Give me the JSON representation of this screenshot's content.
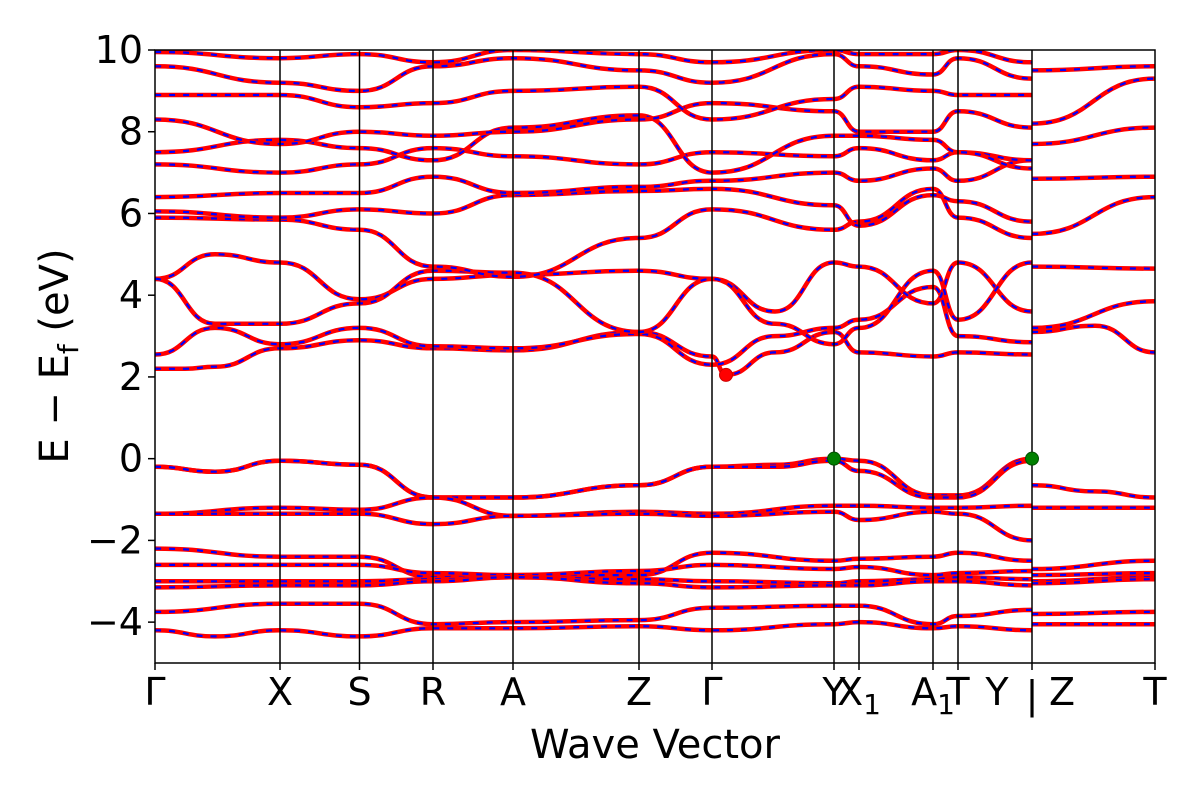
{
  "chart_data": {
    "type": "line",
    "xlabel": "Wave Vector",
    "ylabel": "E − E",
    "ylabel_subscript": "f",
    "ylabel_unit": " (eV)",
    "ylim": [
      -5,
      10
    ],
    "yticks": [
      -4,
      -2,
      0,
      2,
      4,
      6,
      8,
      10
    ],
    "ytick_labels": [
      "−4",
      "−2",
      "0",
      "2",
      "4",
      "6",
      "8",
      "10"
    ],
    "xlim": [
      0,
      1
    ],
    "kpath_labels": [
      {
        "label": "Γ",
        "x": 0.0
      },
      {
        "label": "X",
        "x": 0.125
      },
      {
        "label": "S",
        "x": 0.2045
      },
      {
        "label": "R",
        "x": 0.278
      },
      {
        "label": "A",
        "x": 0.358
      },
      {
        "label": "Z",
        "x": 0.484
      },
      {
        "label": "Γ",
        "x": 0.557
      },
      {
        "label": "Y",
        "x": 0.679
      },
      {
        "label": "X",
        "sub": "1",
        "x": 0.704
      },
      {
        "label": "A",
        "sub": "1",
        "x": 0.778
      },
      {
        "label": "T",
        "x": 0.803
      },
      {
        "label": "Y",
        "x": 0.877,
        "display_offset": -0.035
      },
      {
        "label": "|",
        "x": 0.877
      },
      {
        "label": "Z",
        "x": 0.877,
        "display_offset": 0.03
      },
      {
        "label": "T",
        "x": 1.0
      }
    ],
    "separators": [
      0.125,
      0.2045,
      0.278,
      0.358,
      0.484,
      0.557,
      0.679,
      0.704,
      0.778,
      0.803,
      0.877
    ],
    "series_colors": {
      "band": "#ff0000",
      "overlay": "#0000ff"
    },
    "markers": [
      {
        "x": 0.571,
        "y": 2.05,
        "color": "#ff0000",
        "edge": "#cc0000"
      },
      {
        "x": 0.679,
        "y": 0.0,
        "color": "#008000",
        "edge": "#005000"
      },
      {
        "x": 0.877,
        "y": 0.0,
        "color": "#008000",
        "edge": "#005000"
      }
    ],
    "series": [
      {
        "x": [
          0,
          0.06,
          0.125,
          0.2045,
          0.278,
          0.358,
          0.484,
          0.557,
          0.62,
          0.679,
          0.704,
          0.778,
          0.803,
          0.877,
          0.877,
          0.94,
          1.0
        ],
        "y": [
          -0.2,
          -0.32,
          -0.05,
          -0.15,
          -0.95,
          -0.95,
          -0.65,
          -0.2,
          -0.15,
          0.0,
          -0.05,
          -0.9,
          -0.9,
          0.0,
          -0.65,
          -0.8,
          -0.95
        ]
      },
      {
        "x": [
          0,
          0.06,
          0.125,
          0.2045,
          0.278,
          0.358,
          0.484,
          0.557,
          0.62,
          0.679,
          0.704,
          0.778,
          0.803,
          0.877
        ],
        "y": [
          -0.2,
          -0.32,
          -0.05,
          -0.15,
          -0.95,
          -0.95,
          -0.65,
          -0.2,
          -0.2,
          -0.05,
          -0.3,
          -0.95,
          -0.95,
          -0.05
        ]
      },
      {
        "x": [
          0,
          0.125,
          0.2045,
          0.278,
          0.358,
          0.484,
          0.557,
          0.679,
          0.704,
          0.778,
          0.803,
          0.877,
          0.877,
          1.0
        ],
        "y": [
          -1.35,
          -1.2,
          -1.25,
          -0.95,
          -1.4,
          -1.3,
          -1.35,
          -1.15,
          -1.15,
          -1.2,
          -1.2,
          -1.15,
          -1.2,
          -1.2
        ]
      },
      {
        "x": [
          0,
          0.125,
          0.2045,
          0.278,
          0.358,
          0.484,
          0.557,
          0.679,
          0.704,
          0.778,
          0.803,
          0.877
        ],
        "y": [
          -1.35,
          -1.35,
          -1.35,
          -1.6,
          -1.4,
          -1.35,
          -1.4,
          -1.3,
          -1.5,
          -1.3,
          -1.35,
          -2.0
        ]
      },
      {
        "x": [
          0,
          0.125,
          0.2045,
          0.278,
          0.358,
          0.484,
          0.557,
          0.679,
          0.704,
          0.778,
          0.803,
          0.877,
          0.877,
          1.0
        ],
        "y": [
          -2.2,
          -2.4,
          -2.4,
          -2.9,
          -2.85,
          -2.85,
          -2.3,
          -2.5,
          -2.45,
          -2.4,
          -2.3,
          -2.5,
          -2.7,
          -2.5
        ]
      },
      {
        "x": [
          0,
          0.125,
          0.2045,
          0.278,
          0.358,
          0.484,
          0.557,
          0.679,
          0.704,
          0.778,
          0.803,
          0.877,
          0.877,
          1.0
        ],
        "y": [
          -2.6,
          -2.6,
          -2.6,
          -2.8,
          -2.85,
          -2.75,
          -2.6,
          -2.7,
          -2.65,
          -2.85,
          -2.8,
          -2.75,
          -2.85,
          -2.8
        ]
      },
      {
        "x": [
          0,
          0.125,
          0.2045,
          0.278,
          0.358,
          0.484,
          0.557,
          0.679,
          0.704,
          0.778,
          0.803,
          0.877,
          0.877,
          1.0
        ],
        "y": [
          -3.0,
          -3.0,
          -3.0,
          -2.95,
          -2.9,
          -2.95,
          -3.0,
          -3.05,
          -3.0,
          -2.95,
          -2.9,
          -2.95,
          -3.0,
          -2.9
        ]
      },
      {
        "x": [
          0,
          0.125,
          0.2045,
          0.278,
          0.358,
          0.484,
          0.557,
          0.679,
          0.704,
          0.778,
          0.803,
          0.877,
          0.877,
          1.0
        ],
        "y": [
          -3.15,
          -3.1,
          -3.1,
          -3.0,
          -2.9,
          -3.05,
          -3.15,
          -3.1,
          -3.1,
          -3.0,
          -3.0,
          -3.1,
          -3.05,
          -2.95
        ]
      },
      {
        "x": [
          0,
          0.125,
          0.2045,
          0.278,
          0.358,
          0.484,
          0.557,
          0.679,
          0.704,
          0.778,
          0.803,
          0.877,
          0.877,
          1.0
        ],
        "y": [
          -3.75,
          -3.55,
          -3.55,
          -4.05,
          -4.0,
          -3.95,
          -3.65,
          -3.6,
          -3.6,
          -4.05,
          -3.85,
          -3.7,
          -3.8,
          -3.75
        ]
      },
      {
        "x": [
          0,
          0.06,
          0.125,
          0.2045,
          0.278,
          0.358,
          0.484,
          0.557,
          0.679,
          0.704,
          0.778,
          0.803,
          0.877,
          0.877,
          1.0
        ],
        "y": [
          -4.2,
          -4.35,
          -4.2,
          -4.35,
          -4.15,
          -4.15,
          -4.1,
          -4.2,
          -4.05,
          -4.0,
          -4.15,
          -4.1,
          -4.2,
          -4.05,
          -4.05
        ]
      },
      {
        "x": [
          0,
          0.03,
          0.06,
          0.125,
          0.2045,
          0.278,
          0.358,
          0.484,
          0.557,
          0.571,
          0.62,
          0.679,
          0.704,
          0.778,
          0.803,
          0.877,
          0.877,
          0.94,
          1.0
        ],
        "y": [
          2.2,
          2.2,
          2.25,
          2.7,
          2.9,
          2.7,
          2.65,
          3.1,
          2.5,
          2.05,
          2.6,
          3.1,
          2.6,
          2.5,
          2.6,
          2.55,
          3.1,
          3.25,
          2.6
        ]
      },
      {
        "x": [
          0,
          0.06,
          0.125,
          0.2045,
          0.278,
          0.358,
          0.484,
          0.557,
          0.62,
          0.679,
          0.704,
          0.778,
          0.803,
          0.877
        ],
        "y": [
          2.55,
          3.2,
          2.8,
          3.2,
          2.75,
          2.7,
          3.05,
          2.3,
          3.0,
          3.2,
          3.4,
          4.2,
          3.0,
          2.85
        ]
      },
      {
        "x": [
          0,
          0.06,
          0.125,
          0.2045,
          0.278,
          0.358,
          0.484,
          0.557,
          0.62,
          0.679,
          0.704,
          0.778,
          0.803,
          0.877,
          0.877,
          1.0
        ],
        "y": [
          4.4,
          5.0,
          4.8,
          3.9,
          4.4,
          4.5,
          4.6,
          4.4,
          3.6,
          4.8,
          4.7,
          3.8,
          4.8,
          3.6,
          4.7,
          4.65
        ]
      },
      {
        "x": [
          0,
          0.06,
          0.125,
          0.2045,
          0.278,
          0.358,
          0.484,
          0.557,
          0.62,
          0.679,
          0.704,
          0.778,
          0.803,
          0.877,
          0.877,
          1.0
        ],
        "y": [
          4.4,
          3.3,
          3.3,
          3.8,
          4.6,
          4.55,
          3.1,
          4.4,
          3.3,
          2.8,
          3.2,
          4.6,
          3.4,
          4.8,
          3.2,
          3.85
        ]
      },
      {
        "x": [
          0,
          0.125,
          0.2045,
          0.278,
          0.358,
          0.484,
          0.557,
          0.679,
          0.704,
          0.778,
          0.803,
          0.877,
          0.877,
          1.0
        ],
        "y": [
          5.9,
          5.85,
          5.6,
          4.7,
          4.45,
          5.4,
          6.1,
          5.6,
          5.8,
          6.6,
          5.9,
          5.4,
          5.5,
          6.4
        ]
      },
      {
        "x": [
          0,
          0.125,
          0.2045,
          0.278,
          0.358,
          0.484,
          0.557,
          0.679,
          0.704,
          0.778,
          0.803,
          0.877,
          0.877,
          1.0
        ],
        "y": [
          6.05,
          5.9,
          6.1,
          6.0,
          6.45,
          6.55,
          6.6,
          6.2,
          5.7,
          6.45,
          6.3,
          5.8,
          6.85,
          6.9
        ]
      },
      {
        "x": [
          0,
          0.125,
          0.2045,
          0.278,
          0.358,
          0.484,
          0.557,
          0.679,
          0.704,
          0.778,
          0.803,
          0.877
        ],
        "y": [
          6.4,
          6.5,
          6.5,
          6.9,
          6.5,
          6.65,
          6.8,
          7.0,
          6.8,
          7.1,
          6.8,
          7.3
        ]
      },
      {
        "x": [
          0,
          0.125,
          0.2045,
          0.278,
          0.358,
          0.484,
          0.557,
          0.679,
          0.704,
          0.778,
          0.803,
          0.877,
          0.877,
          1.0
        ],
        "y": [
          7.2,
          7.0,
          7.2,
          7.6,
          7.4,
          7.2,
          7.5,
          7.4,
          7.6,
          7.3,
          7.5,
          7.3,
          7.7,
          8.1
        ]
      },
      {
        "x": [
          0,
          0.125,
          0.2045,
          0.278,
          0.358,
          0.484,
          0.557,
          0.679,
          0.704,
          0.778,
          0.803,
          0.877
        ],
        "y": [
          7.5,
          7.8,
          7.6,
          7.3,
          8.1,
          8.4,
          7.0,
          7.9,
          7.9,
          7.8,
          7.5,
          7.1
        ]
      },
      {
        "x": [
          0,
          0.125,
          0.2045,
          0.278,
          0.358,
          0.484,
          0.557,
          0.679,
          0.704,
          0.778,
          0.803,
          0.877,
          0.877,
          1.0
        ],
        "y": [
          8.3,
          7.7,
          8.0,
          7.9,
          8.0,
          8.3,
          8.7,
          8.5,
          8.0,
          8.0,
          8.5,
          8.1,
          8.2,
          9.3
        ]
      },
      {
        "x": [
          0,
          0.125,
          0.2045,
          0.278,
          0.358,
          0.484,
          0.557,
          0.679,
          0.704,
          0.778,
          0.803,
          0.877
        ],
        "y": [
          8.9,
          8.9,
          8.6,
          8.7,
          9.0,
          9.1,
          8.3,
          8.8,
          9.1,
          9.0,
          8.9,
          8.9
        ]
      },
      {
        "x": [
          0,
          0.125,
          0.2045,
          0.278,
          0.358,
          0.484,
          0.557,
          0.679,
          0.704,
          0.778,
          0.803,
          0.877,
          0.877,
          1.0
        ],
        "y": [
          9.6,
          9.2,
          9.0,
          9.6,
          9.8,
          9.5,
          9.2,
          9.9,
          9.6,
          9.4,
          9.8,
          9.3,
          9.5,
          9.6
        ]
      },
      {
        "x": [
          0,
          0.125,
          0.2045,
          0.278,
          0.358,
          0.484,
          0.557,
          0.679,
          0.704,
          0.778,
          0.803,
          0.877
        ],
        "y": [
          9.95,
          9.8,
          9.9,
          9.7,
          10.0,
          9.9,
          9.7,
          10.0,
          9.9,
          9.9,
          10.0,
          9.7
        ]
      }
    ]
  }
}
